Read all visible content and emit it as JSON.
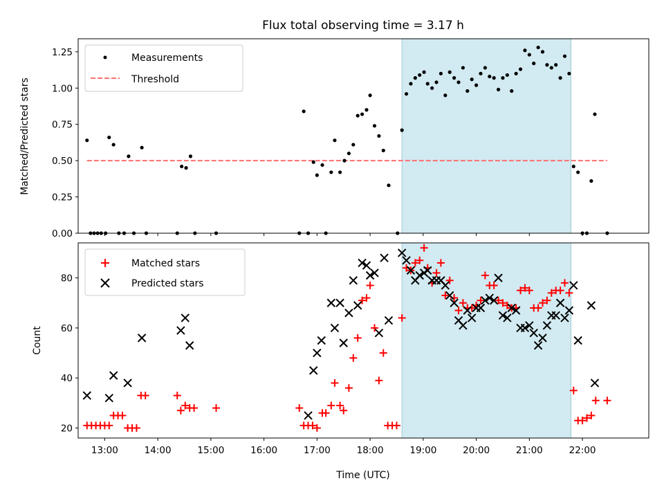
{
  "chart_data": [
    {
      "type": "scatter",
      "title": "Flux total observing time = 3.17 h",
      "xlabel": "",
      "ylabel": "Matched/Predicted stars",
      "xlim": [
        "12:30",
        "23:15"
      ],
      "ylim": [
        0,
        1.34
      ],
      "yticks": [
        "0.00",
        "0.25",
        "0.50",
        "0.75",
        "1.00",
        "1.25"
      ],
      "x_tick_labels_shown": false,
      "legend_position": "upper-left",
      "shaded_span": {
        "start": "18:36",
        "end": "21:47",
        "color": "#add8e6"
      },
      "series": [
        {
          "name": "Measurements",
          "marker": "dot",
          "color": "#000000",
          "points": [
            [
              "12:40",
              0.64
            ],
            [
              "12:44",
              0
            ],
            [
              "12:48",
              0
            ],
            [
              "12:52",
              0
            ],
            [
              "12:56",
              0
            ],
            [
              "13:01",
              0
            ],
            [
              "13:05",
              0.66
            ],
            [
              "13:10",
              0.61
            ],
            [
              "13:16",
              0
            ],
            [
              "13:22",
              0
            ],
            [
              "13:27",
              0.53
            ],
            [
              "13:33",
              0
            ],
            [
              "13:42",
              0.59
            ],
            [
              "13:47",
              0
            ],
            [
              "14:22",
              0
            ],
            [
              "14:27",
              0.46
            ],
            [
              "14:32",
              0.45
            ],
            [
              "14:37",
              0.53
            ],
            [
              "14:42",
              0
            ],
            [
              "15:06",
              0
            ],
            [
              "16:40",
              0
            ],
            [
              "16:45",
              0.84
            ],
            [
              "16:50",
              0
            ],
            [
              "16:56",
              0.49
            ],
            [
              "17:00",
              0.4
            ],
            [
              "17:06",
              0.47
            ],
            [
              "17:10",
              0
            ],
            [
              "17:16",
              0.42
            ],
            [
              "17:20",
              0.64
            ],
            [
              "17:26",
              0.42
            ],
            [
              "17:31",
              0.5
            ],
            [
              "17:36",
              0.55
            ],
            [
              "17:41",
              0.61
            ],
            [
              "17:46",
              0.81
            ],
            [
              "17:51",
              0.82
            ],
            [
              "17:56",
              0.85
            ],
            [
              "18:00",
              0.95
            ],
            [
              "18:05",
              0.74
            ],
            [
              "18:10",
              0.67
            ],
            [
              "18:15",
              0.57
            ],
            [
              "18:21",
              0.33
            ],
            [
              "18:31",
              0
            ],
            [
              "18:36",
              0.71
            ],
            [
              "18:41",
              0.96
            ],
            [
              "18:46",
              1.03
            ],
            [
              "18:51",
              1.07
            ],
            [
              "18:56",
              1.09
            ],
            [
              "19:01",
              1.11
            ],
            [
              "19:05",
              1.03
            ],
            [
              "19:10",
              1.0
            ],
            [
              "19:15",
              1.04
            ],
            [
              "19:20",
              1.1
            ],
            [
              "19:25",
              0.95
            ],
            [
              "19:30",
              1.11
            ],
            [
              "19:35",
              1.07
            ],
            [
              "19:40",
              1.04
            ],
            [
              "19:45",
              1.14
            ],
            [
              "19:50",
              0.98
            ],
            [
              "19:55",
              1.06
            ],
            [
              "20:00",
              1.02
            ],
            [
              "20:05",
              1.1
            ],
            [
              "20:10",
              1.14
            ],
            [
              "20:15",
              1.08
            ],
            [
              "20:20",
              1.07
            ],
            [
              "20:25",
              0.99
            ],
            [
              "20:30",
              1.07
            ],
            [
              "20:35",
              1.09
            ],
            [
              "20:40",
              0.98
            ],
            [
              "20:45",
              1.1
            ],
            [
              "20:50",
              1.13
            ],
            [
              "20:55",
              1.26
            ],
            [
              "21:00",
              1.23
            ],
            [
              "21:05",
              1.17
            ],
            [
              "21:10",
              1.28
            ],
            [
              "21:15",
              1.25
            ],
            [
              "21:20",
              1.16
            ],
            [
              "21:25",
              1.14
            ],
            [
              "21:30",
              1.16
            ],
            [
              "21:35",
              1.07
            ],
            [
              "21:40",
              1.22
            ],
            [
              "21:45",
              1.1
            ],
            [
              "21:50",
              0.46
            ],
            [
              "21:55",
              0.42
            ],
            [
              "22:00",
              0
            ],
            [
              "22:05",
              0
            ],
            [
              "22:10",
              0.36
            ],
            [
              "22:14",
              0.82
            ],
            [
              "22:28",
              0
            ]
          ]
        },
        {
          "name": "Threshold",
          "style": "dashed-line",
          "color": "#ff6f6f",
          "x_range": [
            "12:40",
            "22:28"
          ],
          "value": 0.5
        }
      ]
    },
    {
      "type": "scatter",
      "title": "",
      "xlabel": "Time (UTC)",
      "ylabel": "Count",
      "xlim": [
        "12:30",
        "23:15"
      ],
      "ylim": [
        16,
        94
      ],
      "yticks": [
        "20",
        "40",
        "60",
        "80"
      ],
      "xticks": [
        "13:00",
        "14:00",
        "15:00",
        "16:00",
        "17:00",
        "18:00",
        "19:00",
        "20:00",
        "21:00",
        "22:00"
      ],
      "legend_position": "upper-left",
      "shaded_span": {
        "start": "18:36",
        "end": "21:47",
        "color": "#add8e6"
      },
      "series": [
        {
          "name": "Matched stars",
          "marker": "plus",
          "color": "#ff0000",
          "points": [
            [
              "12:40",
              21
            ],
            [
              "12:45",
              21
            ],
            [
              "12:50",
              21
            ],
            [
              "12:55",
              21
            ],
            [
              "13:00",
              21
            ],
            [
              "13:05",
              21
            ],
            [
              "13:10",
              25
            ],
            [
              "13:15",
              25
            ],
            [
              "13:20",
              25
            ],
            [
              "13:26",
              20
            ],
            [
              "13:31",
              20
            ],
            [
              "13:36",
              20
            ],
            [
              "13:41",
              33
            ],
            [
              "13:46",
              33
            ],
            [
              "14:22",
              33
            ],
            [
              "14:26",
              27
            ],
            [
              "14:31",
              29
            ],
            [
              "14:36",
              28
            ],
            [
              "14:41",
              28
            ],
            [
              "15:06",
              28
            ],
            [
              "16:40",
              28
            ],
            [
              "16:45",
              21
            ],
            [
              "16:50",
              21
            ],
            [
              "16:55",
              21
            ],
            [
              "17:00",
              20
            ],
            [
              "17:06",
              26
            ],
            [
              "17:10",
              26
            ],
            [
              "17:16",
              29
            ],
            [
              "17:20",
              38
            ],
            [
              "17:26",
              29
            ],
            [
              "17:30",
              27
            ],
            [
              "17:36",
              36
            ],
            [
              "17:41",
              48
            ],
            [
              "17:46",
              56
            ],
            [
              "17:51",
              71
            ],
            [
              "17:56",
              72
            ],
            [
              "18:00",
              77
            ],
            [
              "18:05",
              60
            ],
            [
              "18:10",
              39
            ],
            [
              "18:15",
              50
            ],
            [
              "18:20",
              21
            ],
            [
              "18:25",
              21
            ],
            [
              "18:30",
              21
            ],
            [
              "18:36",
              64
            ],
            [
              "18:41",
              84
            ],
            [
              "18:46",
              83
            ],
            [
              "18:51",
              86
            ],
            [
              "18:56",
              87
            ],
            [
              "19:01",
              92
            ],
            [
              "19:05",
              84
            ],
            [
              "19:10",
              78
            ],
            [
              "19:15",
              82
            ],
            [
              "19:20",
              86
            ],
            [
              "19:25",
              73
            ],
            [
              "19:30",
              79
            ],
            [
              "19:35",
              72
            ],
            [
              "19:40",
              67
            ],
            [
              "19:45",
              70
            ],
            [
              "19:50",
              68
            ],
            [
              "19:55",
              68
            ],
            [
              "20:00",
              69
            ],
            [
              "20:05",
              71
            ],
            [
              "20:10",
              81
            ],
            [
              "20:15",
              77
            ],
            [
              "20:20",
              77
            ],
            [
              "20:25",
              71
            ],
            [
              "20:30",
              70
            ],
            [
              "20:35",
              69
            ],
            [
              "20:40",
              68
            ],
            [
              "20:45",
              68
            ],
            [
              "20:50",
              75
            ],
            [
              "20:55",
              76
            ],
            [
              "21:00",
              75
            ],
            [
              "21:05",
              68
            ],
            [
              "21:10",
              68
            ],
            [
              "21:15",
              70
            ],
            [
              "21:20",
              71
            ],
            [
              "21:25",
              74
            ],
            [
              "21:30",
              75
            ],
            [
              "21:35",
              75
            ],
            [
              "21:40",
              78
            ],
            [
              "21:45",
              74
            ],
            [
              "21:50",
              35
            ],
            [
              "21:55",
              23
            ],
            [
              "22:00",
              23
            ],
            [
              "22:05",
              24
            ],
            [
              "22:10",
              25
            ],
            [
              "22:15",
              31
            ],
            [
              "22:28",
              31
            ]
          ]
        },
        {
          "name": "Predicted stars",
          "marker": "x",
          "color": "#000000",
          "points": [
            [
              "12:40",
              33
            ],
            [
              "13:05",
              32
            ],
            [
              "13:10",
              41
            ],
            [
              "13:26",
              38
            ],
            [
              "13:42",
              56
            ],
            [
              "14:26",
              59
            ],
            [
              "14:31",
              64
            ],
            [
              "14:36",
              53
            ],
            [
              "16:50",
              25
            ],
            [
              "16:56",
              43
            ],
            [
              "17:00",
              50
            ],
            [
              "17:05",
              55
            ],
            [
              "17:16",
              70
            ],
            [
              "17:20",
              60
            ],
            [
              "17:26",
              70
            ],
            [
              "17:30",
              54
            ],
            [
              "17:36",
              66
            ],
            [
              "17:41",
              79
            ],
            [
              "17:46",
              69
            ],
            [
              "17:51",
              86
            ],
            [
              "17:56",
              85
            ],
            [
              "18:00",
              81
            ],
            [
              "18:05",
              82
            ],
            [
              "18:10",
              58
            ],
            [
              "18:16",
              88
            ],
            [
              "18:21",
              63
            ],
            [
              "18:36",
              90
            ],
            [
              "18:41",
              87
            ],
            [
              "18:46",
              83
            ],
            [
              "18:51",
              79
            ],
            [
              "18:56",
              81
            ],
            [
              "19:01",
              82
            ],
            [
              "19:05",
              83
            ],
            [
              "19:10",
              79
            ],
            [
              "19:15",
              79
            ],
            [
              "19:20",
              79
            ],
            [
              "19:25",
              77
            ],
            [
              "19:30",
              73
            ],
            [
              "19:35",
              70
            ],
            [
              "19:40",
              63
            ],
            [
              "19:45",
              61
            ],
            [
              "19:50",
              67
            ],
            [
              "19:55",
              64
            ],
            [
              "20:00",
              68
            ],
            [
              "20:05",
              68
            ],
            [
              "20:10",
              71
            ],
            [
              "20:15",
              72
            ],
            [
              "20:20",
              71
            ],
            [
              "20:25",
              80
            ],
            [
              "20:30",
              65
            ],
            [
              "20:35",
              64
            ],
            [
              "20:40",
              68
            ],
            [
              "20:45",
              67
            ],
            [
              "20:50",
              60
            ],
            [
              "20:55",
              60
            ],
            [
              "21:00",
              61
            ],
            [
              "21:05",
              58
            ],
            [
              "21:10",
              53
            ],
            [
              "21:15",
              56
            ],
            [
              "21:20",
              61
            ],
            [
              "21:25",
              65
            ],
            [
              "21:30",
              65
            ],
            [
              "21:35",
              70
            ],
            [
              "21:40",
              64
            ],
            [
              "21:45",
              67
            ],
            [
              "21:50",
              77
            ],
            [
              "21:55",
              55
            ],
            [
              "22:10",
              69
            ],
            [
              "22:14",
              38
            ]
          ]
        }
      ]
    }
  ]
}
